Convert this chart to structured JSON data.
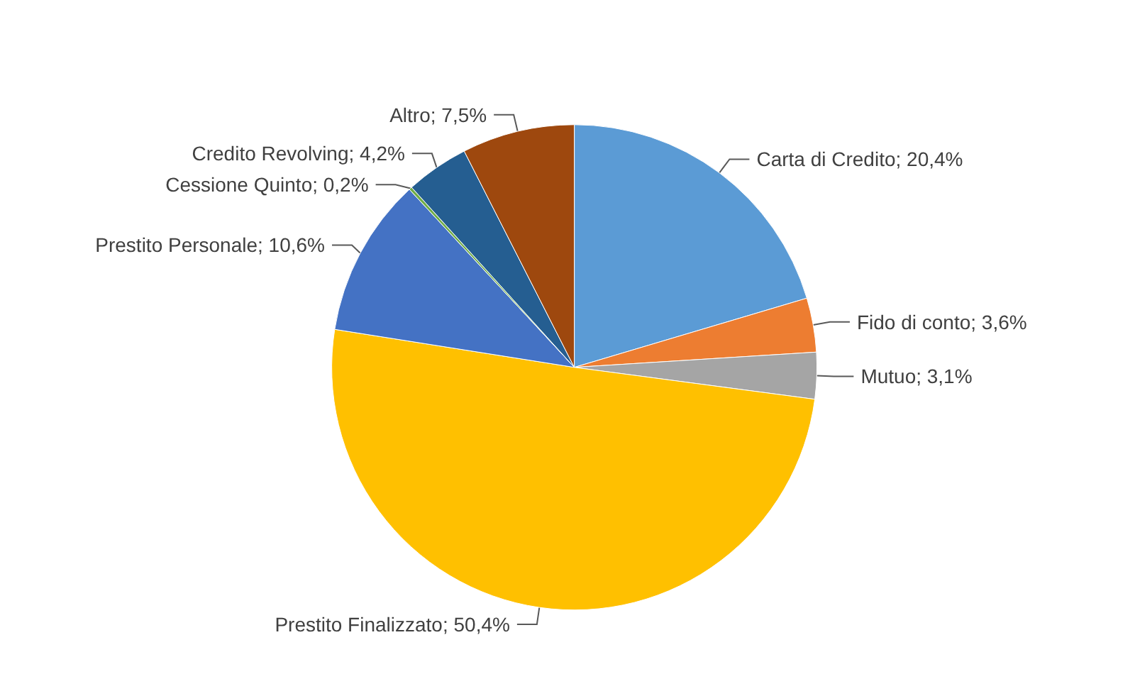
{
  "chart_data": {
    "type": "pie",
    "categories": [
      "Carta di Credito",
      "Fido di conto",
      "Mutuo",
      "Prestito Finalizzato",
      "Prestito Personale",
      "Cessione Quinto",
      "Credito Revolving",
      "Altro"
    ],
    "values": [
      20.4,
      3.6,
      3.1,
      50.4,
      10.6,
      0.2,
      4.2,
      7.5
    ],
    "value_labels": [
      "20,4%",
      "3,6%",
      "3,1%",
      "50,4%",
      "10,6%",
      "0,2%",
      "4,2%",
      "7,5%"
    ],
    "colors": [
      "#5b9bd5",
      "#ed7d31",
      "#a5a5a5",
      "#ffc000",
      "#4472c4",
      "#70ad47",
      "#255e91",
      "#9e480e"
    ]
  }
}
